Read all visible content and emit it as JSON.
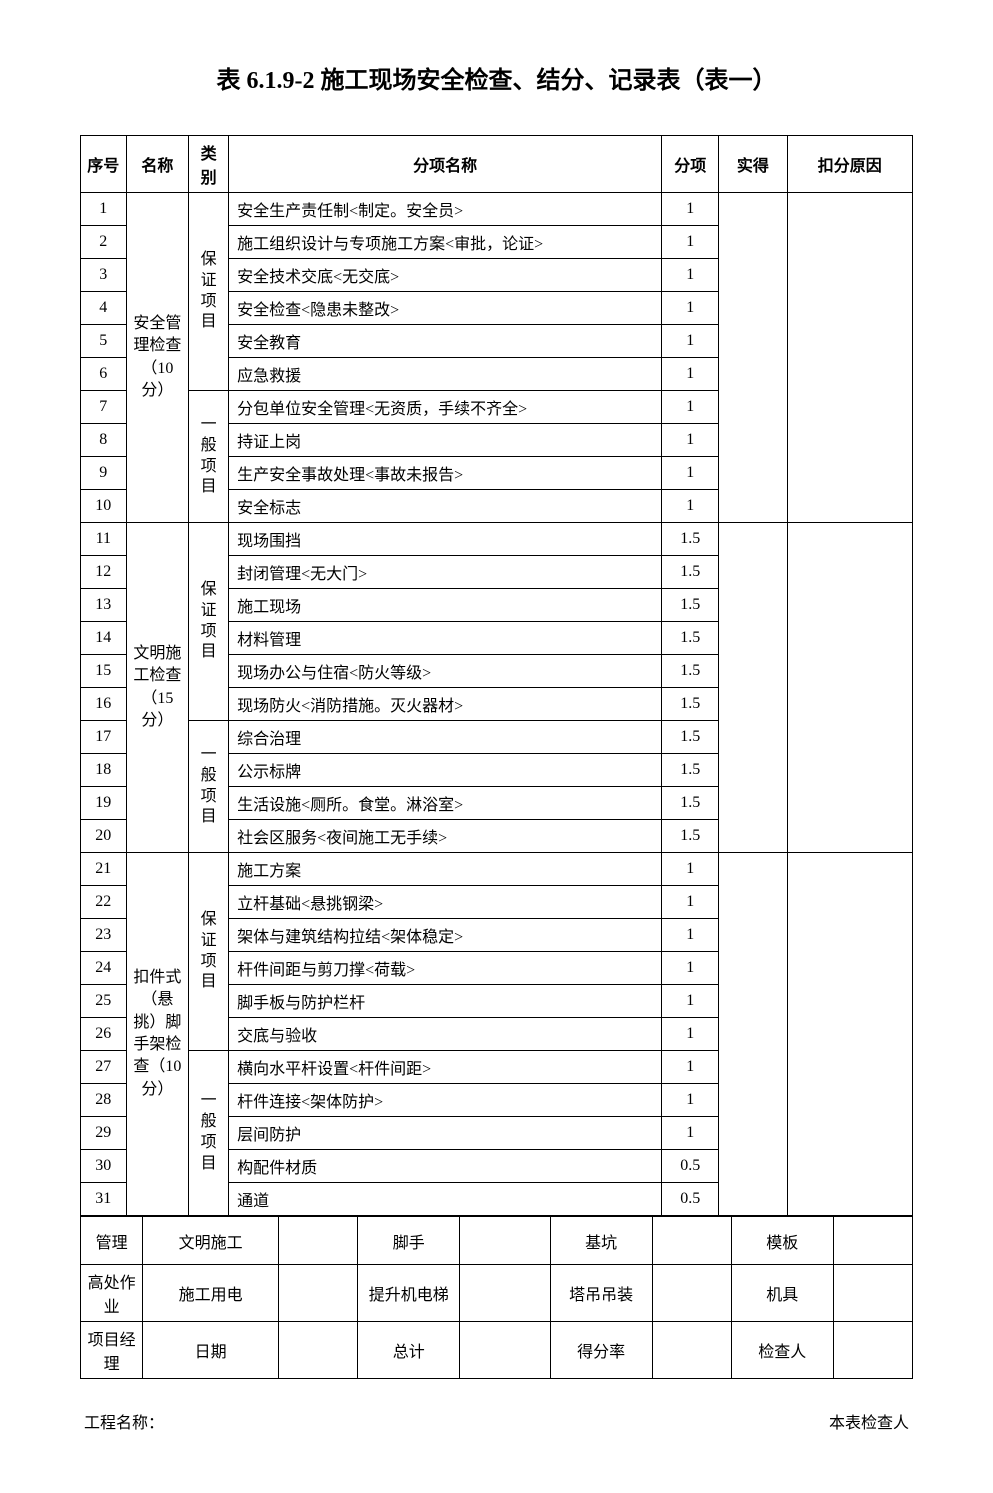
{
  "title": "表 6.1.9-2    施工现场安全检查、结分、记录表（表一）",
  "headers": {
    "seq": "序号",
    "name": "名称",
    "category": "类别",
    "subitem": "分项名称",
    "score": "分项",
    "actual": "实得",
    "reason": "扣分原因"
  },
  "sections": [
    {
      "name": "安全管理检查（10 分）",
      "groups": [
        {
          "cat": "保证项目",
          "rows": [
            {
              "seq": "1",
              "item": "安全生产责任制<制定。安全员>",
              "score": "1"
            },
            {
              "seq": "2",
              "item": "施工组织设计与专项施工方案<审批，论证>",
              "score": "1"
            },
            {
              "seq": "3",
              "item": "安全技术交底<无交底>",
              "score": "1"
            },
            {
              "seq": "4",
              "item": "安全检查<隐患未整改>",
              "score": "1"
            },
            {
              "seq": "5",
              "item": "安全教育",
              "score": "1"
            },
            {
              "seq": "6",
              "item": "应急救援",
              "score": "1"
            }
          ]
        },
        {
          "cat": "一般项目",
          "rows": [
            {
              "seq": "7",
              "item": "分包单位安全管理<无资质，手续不齐全>",
              "score": "1"
            },
            {
              "seq": "8",
              "item": "持证上岗",
              "score": "1"
            },
            {
              "seq": "9",
              "item": "生产安全事故处理<事故未报告>",
              "score": "1"
            },
            {
              "seq": "10",
              "item": "安全标志",
              "score": "1"
            }
          ]
        }
      ]
    },
    {
      "name": "文明施工检查（15 分）",
      "groups": [
        {
          "cat": "保证项目",
          "rows": [
            {
              "seq": "11",
              "item": "现场围挡",
              "score": "1.5"
            },
            {
              "seq": "12",
              "item": "封闭管理<无大门>",
              "score": "1.5"
            },
            {
              "seq": "13",
              "item": "施工现场",
              "score": "1.5"
            },
            {
              "seq": "14",
              "item": "材料管理",
              "score": "1.5"
            },
            {
              "seq": "15",
              "item": "现场办公与住宿<防火等级>",
              "score": "1.5"
            },
            {
              "seq": "16",
              "item": "现场防火<消防措施。灭火器材>",
              "score": "1.5"
            }
          ]
        },
        {
          "cat": "一般项目",
          "rows": [
            {
              "seq": "17",
              "item": "综合治理",
              "score": "1.5"
            },
            {
              "seq": "18",
              "item": "公示标牌",
              "score": "1.5"
            },
            {
              "seq": "19",
              "item": "生活设施<厕所。食堂。淋浴室>",
              "score": "1.5"
            },
            {
              "seq": "20",
              "item": "社会区服务<夜间施工无手续>",
              "score": "1.5"
            }
          ]
        }
      ]
    },
    {
      "name": "扣件式（悬挑）脚手架检查（10 分）",
      "groups": [
        {
          "cat": "保证项目",
          "rows": [
            {
              "seq": "21",
              "item": "施工方案",
              "score": "1"
            },
            {
              "seq": "22",
              "item": "立杆基础<悬挑钢梁>",
              "score": "1"
            },
            {
              "seq": "23",
              "item": "架体与建筑结构拉结<架体稳定>",
              "score": "1"
            },
            {
              "seq": "24",
              "item": "杆件间距与剪刀撑<荷载>",
              "score": "1"
            },
            {
              "seq": "25",
              "item": "脚手板与防护栏杆",
              "score": "1"
            },
            {
              "seq": "26",
              "item": "交底与验收",
              "score": "1"
            }
          ]
        },
        {
          "cat": "一般项目",
          "rows": [
            {
              "seq": "27",
              "item": "横向水平杆设置<杆件间距>",
              "score": "1"
            },
            {
              "seq": "28",
              "item": "杆件连接<架体防护>",
              "score": "1"
            },
            {
              "seq": "29",
              "item": "层间防护",
              "score": "1"
            },
            {
              "seq": "30",
              "item": "构配件材质",
              "score": "0.5"
            },
            {
              "seq": "31",
              "item": "通道",
              "score": "0.5"
            }
          ]
        }
      ]
    }
  ],
  "footer_rows": [
    [
      "管理",
      "文明施工",
      "",
      "脚手",
      "",
      "基坑",
      "",
      "模板",
      ""
    ],
    [
      "高处作业",
      "施工用电",
      "",
      "提升机电梯",
      "",
      "塔吊吊装",
      "",
      "机具",
      ""
    ],
    [
      "项目经理",
      "日期",
      "",
      "总计",
      "",
      "得分率",
      "",
      "检查人",
      ""
    ]
  ],
  "bottom": {
    "left": "工程名称：",
    "right": "本表检查人"
  }
}
